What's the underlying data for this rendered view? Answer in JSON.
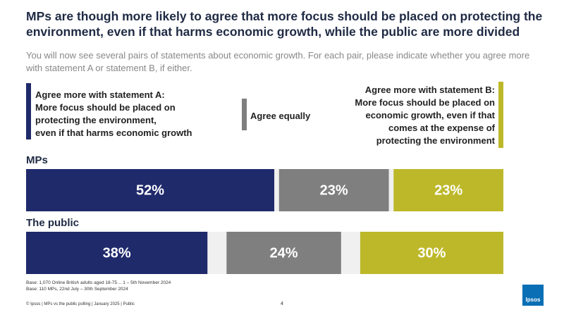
{
  "header": {
    "title": "MPs are though more likely to agree that more focus should be placed on protecting the environment, even if that harms economic growth, while the public are more divided",
    "subtitle": "You will now see several pairs of statements about economic growth. For each pair, please indicate whether you agree more with statement A or statement B, if either."
  },
  "chart_data": {
    "type": "bar",
    "stacked": true,
    "categories": [
      "MPs",
      "The public"
    ],
    "xlim": [
      0,
      100
    ],
    "series": [
      {
        "name": "Agree more with statement A:\nMore focus should be placed on\nprotecting the environment,\neven if that harms economic growth",
        "color": "#1f2a6b",
        "values": [
          52,
          38
        ],
        "value_labels": [
          "52%",
          "38%"
        ]
      },
      {
        "name": "Agree equally",
        "color": "#7f7f7f",
        "values": [
          23,
          24
        ],
        "value_labels": [
          "23%",
          "24%"
        ]
      },
      {
        "name": "Agree more with statement B:\nMore focus should be placed on\neconomic growth, even if that\ncomes at the expense of\nprotecting the environment",
        "color": "#bdb829",
        "values": [
          23,
          30
        ],
        "value_labels": [
          "23%",
          "30%"
        ]
      }
    ]
  },
  "notes": [
    "Base: 1,070 Online British adults aged 18-75… 1 – 5th November 2024",
    "Base: 110 MPs, 22nd July – 30th September 2024"
  ],
  "footer": {
    "text": "© Ipsos | MPs vs the public polling | January 2025 | Public",
    "page": "4",
    "logo": "Ipsos"
  }
}
